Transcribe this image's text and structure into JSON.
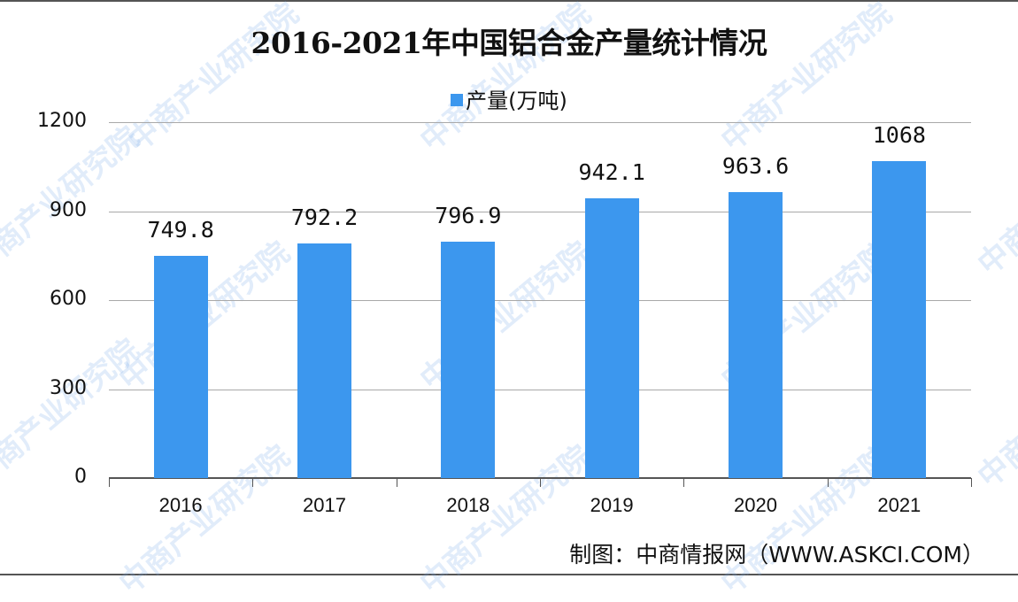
{
  "title": "2016-2021年中国铝合金产量统计情况",
  "legend": {
    "label": "产量(万吨)",
    "color": "#3c97ee"
  },
  "source": "制图：中商情报网（WWW.ASKCI.COM）",
  "watermark": "中商产业研究院",
  "y_axis": {
    "ticks": [
      "0",
      "300",
      "600",
      "900",
      "1200"
    ]
  },
  "x_axis": {
    "ticks": [
      "2016",
      "2017",
      "2018",
      "2019",
      "2020",
      "2021"
    ]
  },
  "value_labels": [
    "749.8",
    "792.2",
    "796.9",
    "942.1",
    "963.6",
    "1068"
  ],
  "chart_data": {
    "type": "bar",
    "title": "2016-2021年中国铝合金产量统计情况",
    "categories": [
      "2016",
      "2017",
      "2018",
      "2019",
      "2020",
      "2021"
    ],
    "series": [
      {
        "name": "产量(万吨)",
        "values": [
          749.8,
          792.2,
          796.9,
          942.1,
          963.6,
          1068
        ],
        "color": "#3c97ee"
      }
    ],
    "xlabel": "",
    "ylabel": "",
    "ylim": [
      0,
      1200
    ],
    "yticks": [
      0,
      300,
      600,
      900,
      1200
    ],
    "grid": true,
    "legend_position": "top",
    "data_labels": true,
    "source": "制图：中商情报网（WWW.ASKCI.COM）"
  }
}
